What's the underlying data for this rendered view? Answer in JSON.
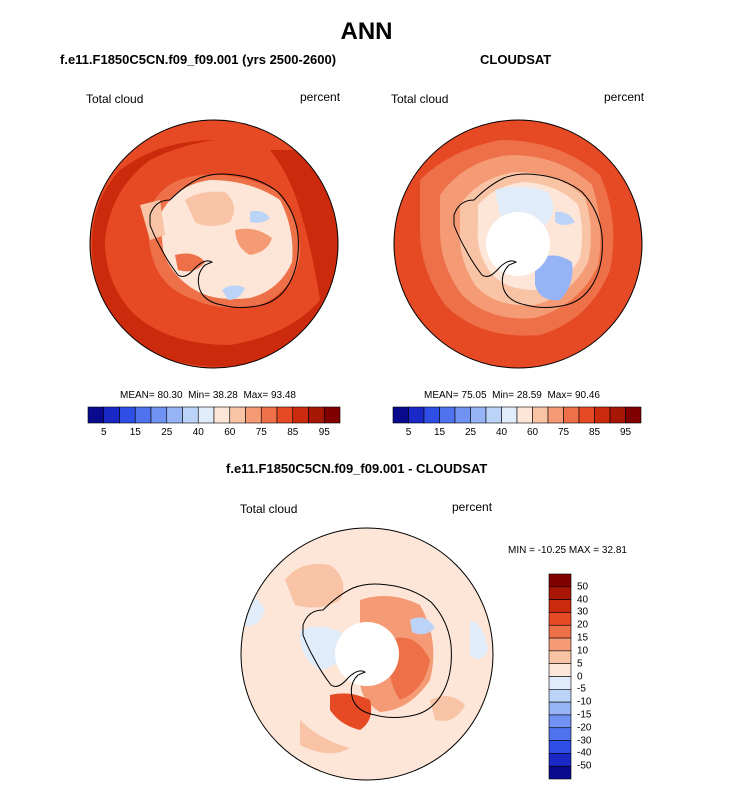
{
  "title": "ANN",
  "panels": [
    {
      "subtitle": "f.e11.F1850C5CN.f09_f09.001 (yrs 2500-2600)",
      "left_label": "Total cloud",
      "right_label": "percent",
      "stats": {
        "mean_label": "MEAN=",
        "mean": "80.30",
        "min_label": "Min=",
        "min": "38.28",
        "max_label": "Max=",
        "max": "93.48"
      }
    },
    {
      "subtitle": "CLOUDSAT",
      "left_label": "Total cloud",
      "right_label": "percent",
      "stats": {
        "mean_label": "MEAN=",
        "mean": "75.05",
        "min_label": "Min=",
        "min": "28.59",
        "max_label": "Max=",
        "max": "90.46"
      }
    },
    {
      "subtitle": "f.e11.F1850C5CN.f09_f09.001 - CLOUDSAT",
      "left_label": "Total cloud",
      "right_label": "percent",
      "stats_text": "MIN = -10.25 MAX =  32.81"
    }
  ],
  "colorbar_abs": {
    "colors": [
      "#0a0a8f",
      "#1a28c8",
      "#2e4ee6",
      "#4f72ef",
      "#7093f3",
      "#96b3f6",
      "#bcd3f8",
      "#e0ecfa",
      "#fde6d8",
      "#f9c3a6",
      "#f49b76",
      "#ee7048",
      "#e64a24",
      "#cc2a0c",
      "#a81606",
      "#800000"
    ],
    "labels": [
      "5",
      "15",
      "25",
      "40",
      "60",
      "75",
      "85",
      "95"
    ]
  },
  "colorbar_diff": {
    "colors": [
      "#0a0a8f",
      "#1a28c8",
      "#2e4ee6",
      "#4f72ef",
      "#7093f3",
      "#96b3f6",
      "#bcd3f8",
      "#e0ecfa",
      "#fde6d8",
      "#f9c3a6",
      "#f49b76",
      "#ee7048",
      "#e64a24",
      "#cc2a0c",
      "#a81606",
      "#800000"
    ],
    "labels": [
      "50",
      "40",
      "30",
      "20",
      "15",
      "10",
      "5",
      "0",
      "-5",
      "-10",
      "-15",
      "-20",
      "-30",
      "-40",
      "-50"
    ]
  }
}
